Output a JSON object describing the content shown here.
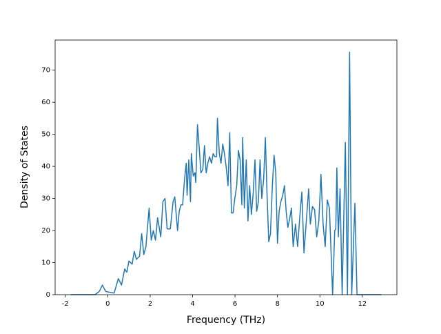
{
  "chart_data": {
    "type": "line",
    "xlabel": "Frequency (THz)",
    "ylabel": "Density of States",
    "series": [
      {
        "color": "#1f77b4",
        "x": [
          -1.75,
          -0.6,
          -0.4,
          -0.25,
          -0.1,
          0.3,
          0.5,
          0.65,
          0.8,
          0.9,
          1.0,
          1.15,
          1.25,
          1.35,
          1.5,
          1.6,
          1.7,
          1.8,
          1.95,
          2.05,
          2.15,
          2.25,
          2.35,
          2.5,
          2.6,
          2.7,
          2.8,
          2.95,
          3.08,
          3.16,
          3.29,
          3.37,
          3.45,
          3.53,
          3.62,
          3.7,
          3.74,
          3.82,
          3.9,
          3.94,
          4.03,
          4.11,
          4.15,
          4.23,
          4.31,
          4.39,
          4.48,
          4.56,
          4.64,
          4.72,
          4.8,
          4.89,
          4.97,
          5.05,
          5.13,
          5.17,
          5.26,
          5.34,
          5.42,
          5.5,
          5.58,
          5.67,
          5.75,
          5.83,
          5.91,
          5.99,
          6.08,
          6.16,
          6.24,
          6.32,
          6.36,
          6.44,
          6.53,
          6.61,
          6.69,
          6.77,
          6.85,
          6.94,
          7.02,
          7.1,
          7.18,
          7.26,
          7.35,
          7.43,
          7.51,
          7.59,
          7.67,
          7.76,
          7.84,
          7.92,
          8.0,
          8.08,
          8.16,
          8.25,
          8.33,
          8.41,
          8.49,
          8.57,
          8.66,
          8.74,
          8.85,
          8.95,
          9.05,
          9.15,
          9.25,
          9.35,
          9.47,
          9.55,
          9.65,
          9.75,
          9.85,
          9.95,
          10.05,
          10.15,
          10.25,
          10.35,
          10.45,
          10.6,
          10.7,
          10.75,
          10.8,
          10.87,
          10.95,
          11.05,
          11.2,
          11.3,
          11.4,
          11.5,
          11.65,
          11.75,
          12.9
        ],
        "values": [
          0,
          0,
          1,
          3,
          1,
          0.5,
          5,
          3,
          8,
          7,
          10.5,
          9.5,
          13.5,
          11,
          12,
          19,
          12.5,
          15,
          27,
          17,
          20,
          17,
          24,
          18,
          29,
          30,
          20.5,
          20.5,
          29,
          30.5,
          20,
          26,
          28,
          28,
          36,
          41,
          31,
          42,
          29,
          44,
          37,
          38,
          35,
          53,
          46,
          38,
          39,
          46.5,
          38,
          41,
          43,
          41,
          44,
          43,
          43,
          55,
          44,
          41,
          47,
          44,
          40,
          34,
          50.5,
          25.5,
          25.5,
          30,
          34,
          45,
          42,
          28,
          49,
          27,
          42,
          23,
          34,
          25,
          31,
          42,
          26,
          29,
          42,
          30,
          36,
          49,
          31,
          16.5,
          19,
          34,
          43.5,
          38,
          16,
          26,
          29,
          31,
          34,
          26,
          21,
          23.5,
          27,
          15,
          22,
          15,
          24,
          32,
          13,
          22,
          33,
          22,
          27.5,
          26.5,
          18,
          23,
          37.5,
          22,
          15,
          29.5,
          27,
          0,
          20,
          20.5,
          39.5,
          18,
          33,
          0,
          47.5,
          0,
          75.6,
          0,
          28.5,
          0,
          0
        ]
      }
    ],
    "xlim": [
      -2.48,
      13.63
    ],
    "ylim": [
      0,
      79.4
    ],
    "xticks": [
      -2,
      0,
      2,
      4,
      6,
      8,
      10,
      12
    ],
    "yticks": [
      0,
      10,
      20,
      30,
      40,
      50,
      60,
      70
    ]
  }
}
